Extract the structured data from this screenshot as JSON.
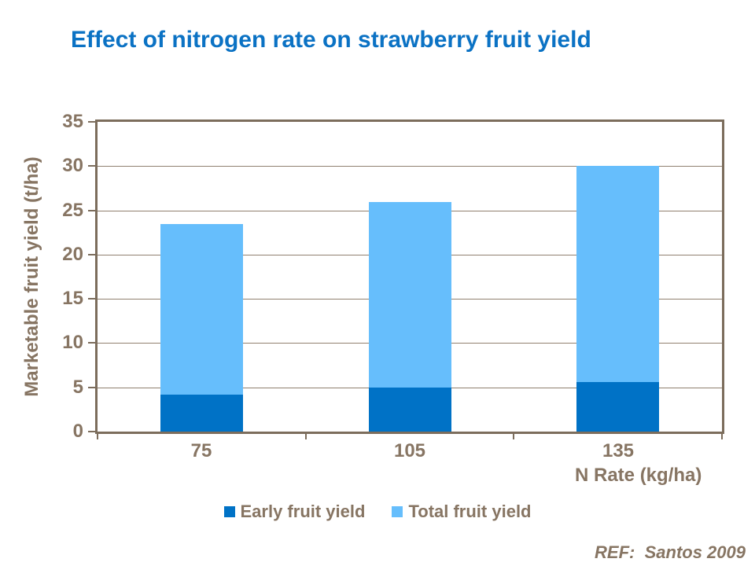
{
  "title": {
    "text": "Effect of nitrogen rate on strawberry fruit yield"
  },
  "ref": {
    "text": "REF:  Santos 2009"
  },
  "colors": {
    "title": "#0b72c4",
    "axis_text": "#877563",
    "gridline": "#90806f",
    "plot_border": "#7c6d5c",
    "early_bar": "#0072c6",
    "total_bar": "#66befc"
  },
  "chart_data": {
    "type": "bar",
    "title": "Effect of nitrogen rate on strawberry fruit yield",
    "categories": [
      "75",
      "105",
      "135"
    ],
    "series": [
      {
        "name": "Early fruit yield",
        "color": "#0072c6",
        "values": [
          4.2,
          5.0,
          5.6
        ]
      },
      {
        "name": "Total fruit yield",
        "color": "#66befc",
        "values": [
          23.5,
          26.0,
          30.0
        ]
      }
    ],
    "series_note": "Total fruit yield values are bar tops; dark Early segment drawn from 0 up to its value, light Total segment stacked above it to the total value",
    "xlabel": "N Rate (kg/ha)",
    "ylabel": "Marketable fruit yield (t/ha)",
    "ylim": [
      0,
      35
    ],
    "yticks": [
      0,
      5,
      10,
      15,
      20,
      25,
      30,
      35
    ],
    "grid": true,
    "legend_position": "bottom"
  }
}
